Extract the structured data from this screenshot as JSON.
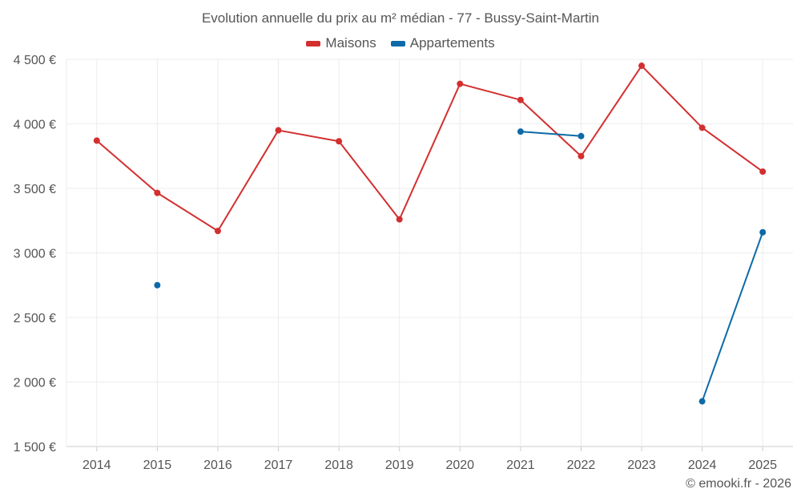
{
  "chart_data": {
    "type": "line",
    "title": "Evolution annuelle du prix au m² médian - 77 - Bussy-Saint-Martin",
    "categories": [
      "2014",
      "2015",
      "2016",
      "2017",
      "2018",
      "2019",
      "2020",
      "2021",
      "2022",
      "2023",
      "2024",
      "2025"
    ],
    "ylim": [
      1500,
      4500
    ],
    "yticks": [
      1500,
      2000,
      2500,
      3000,
      3500,
      4000,
      4500
    ],
    "ytick_labels": [
      "1 500 €",
      "2 000 €",
      "2 500 €",
      "3 000 €",
      "3 500 €",
      "4 000 €",
      "4 500 €"
    ],
    "xlabel": "",
    "ylabel": "",
    "grid": true,
    "legend": "top-center",
    "series": [
      {
        "name": "Maisons",
        "color": "#d32f2f",
        "values": [
          3870,
          3465,
          3170,
          3950,
          3865,
          3260,
          4310,
          4185,
          3750,
          4450,
          3970,
          3630
        ]
      },
      {
        "name": "Appartements",
        "color": "#0d6aa8",
        "values": [
          null,
          2750,
          null,
          null,
          null,
          null,
          null,
          3940,
          3905,
          null,
          1850,
          3160
        ]
      }
    ]
  },
  "credit": "© emooki.fr - 2026"
}
